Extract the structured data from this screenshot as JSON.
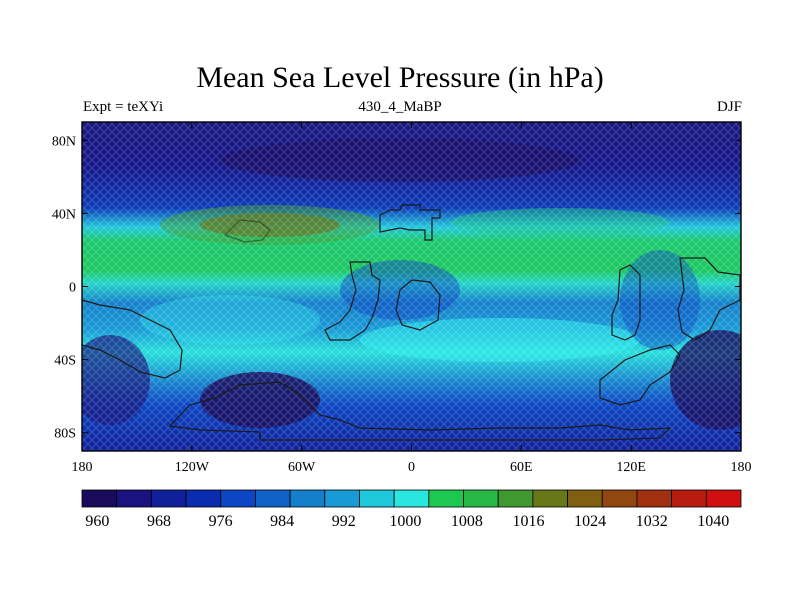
{
  "title": "Mean Sea Level Pressure (in hPa)",
  "left_subtitle": "Expt = teXYi",
  "center_subtitle": "430_4_MaBP",
  "right_subtitle": "DJF",
  "map": {
    "projection": "cylindrical-equidistant",
    "lon_range": [
      -180,
      180
    ],
    "lat_range": [
      -90,
      90
    ],
    "x_ticks": [
      {
        "value": -180,
        "label": "180"
      },
      {
        "value": -120,
        "label": "120W"
      },
      {
        "value": -60,
        "label": "60W"
      },
      {
        "value": 0,
        "label": "0"
      },
      {
        "value": 60,
        "label": "60E"
      },
      {
        "value": 120,
        "label": "120E"
      },
      {
        "value": 180,
        "label": "180"
      }
    ],
    "y_ticks": [
      {
        "value": 80,
        "label": "80N"
      },
      {
        "value": 40,
        "label": "40N"
      },
      {
        "value": 0,
        "label": "0"
      },
      {
        "value": -40,
        "label": "40S"
      },
      {
        "value": -80,
        "label": "80S"
      }
    ],
    "pressure_bands": [
      {
        "lat": [
          90,
          65
        ],
        "hPa": 972
      },
      {
        "lat": [
          65,
          52
        ],
        "hPa": 988
      },
      {
        "lat": [
          52,
          25
        ],
        "hPa": 1006
      },
      {
        "lat": [
          25,
          12
        ],
        "hPa": 996
      },
      {
        "lat": [
          12,
          -22
        ],
        "hPa": 992
      },
      {
        "lat": [
          -22,
          -45
        ],
        "hPa": 998
      },
      {
        "lat": [
          -45,
          -60
        ],
        "hPa": 988
      },
      {
        "lat": [
          -60,
          -90
        ],
        "hPa": 978
      }
    ],
    "features": [
      {
        "name": "subtropical-high",
        "lon": -90,
        "lat": 33,
        "hPa": 1014
      },
      {
        "name": "polar-low-north",
        "lon": -60,
        "lat": 72,
        "hPa": 964
      },
      {
        "name": "southern-low",
        "lon": -80,
        "lat": -62,
        "hPa": 968
      },
      {
        "name": "south-pacific-low",
        "lon": 170,
        "lat": -45,
        "hPa": 972
      }
    ]
  },
  "colorbar": {
    "colors": [
      "#1a0a5c",
      "#1a1280",
      "#10209a",
      "#0c2cb0",
      "#0c46c4",
      "#1060c8",
      "#1480cc",
      "#189ad6",
      "#20c8dc",
      "#28e6e0",
      "#1cc850",
      "#28b848",
      "#409830",
      "#687818",
      "#806010",
      "#904810",
      "#a03010",
      "#b81c10",
      "#d01010"
    ],
    "labels": [
      {
        "index": 1,
        "text": "960"
      },
      {
        "index": 3,
        "text": "968"
      },
      {
        "index": 5,
        "text": "976"
      },
      {
        "index": 7,
        "text": "984"
      },
      {
        "index": 9,
        "text": "992"
      },
      {
        "index": 11,
        "text": "1000"
      },
      {
        "index": 13,
        "text": "1008"
      },
      {
        "index": 15,
        "text": "1016"
      },
      {
        "index": 17,
        "text": "1024"
      },
      {
        "index": 19,
        "text": "1032"
      },
      {
        "index": 21,
        "text": "1040"
      }
    ]
  }
}
